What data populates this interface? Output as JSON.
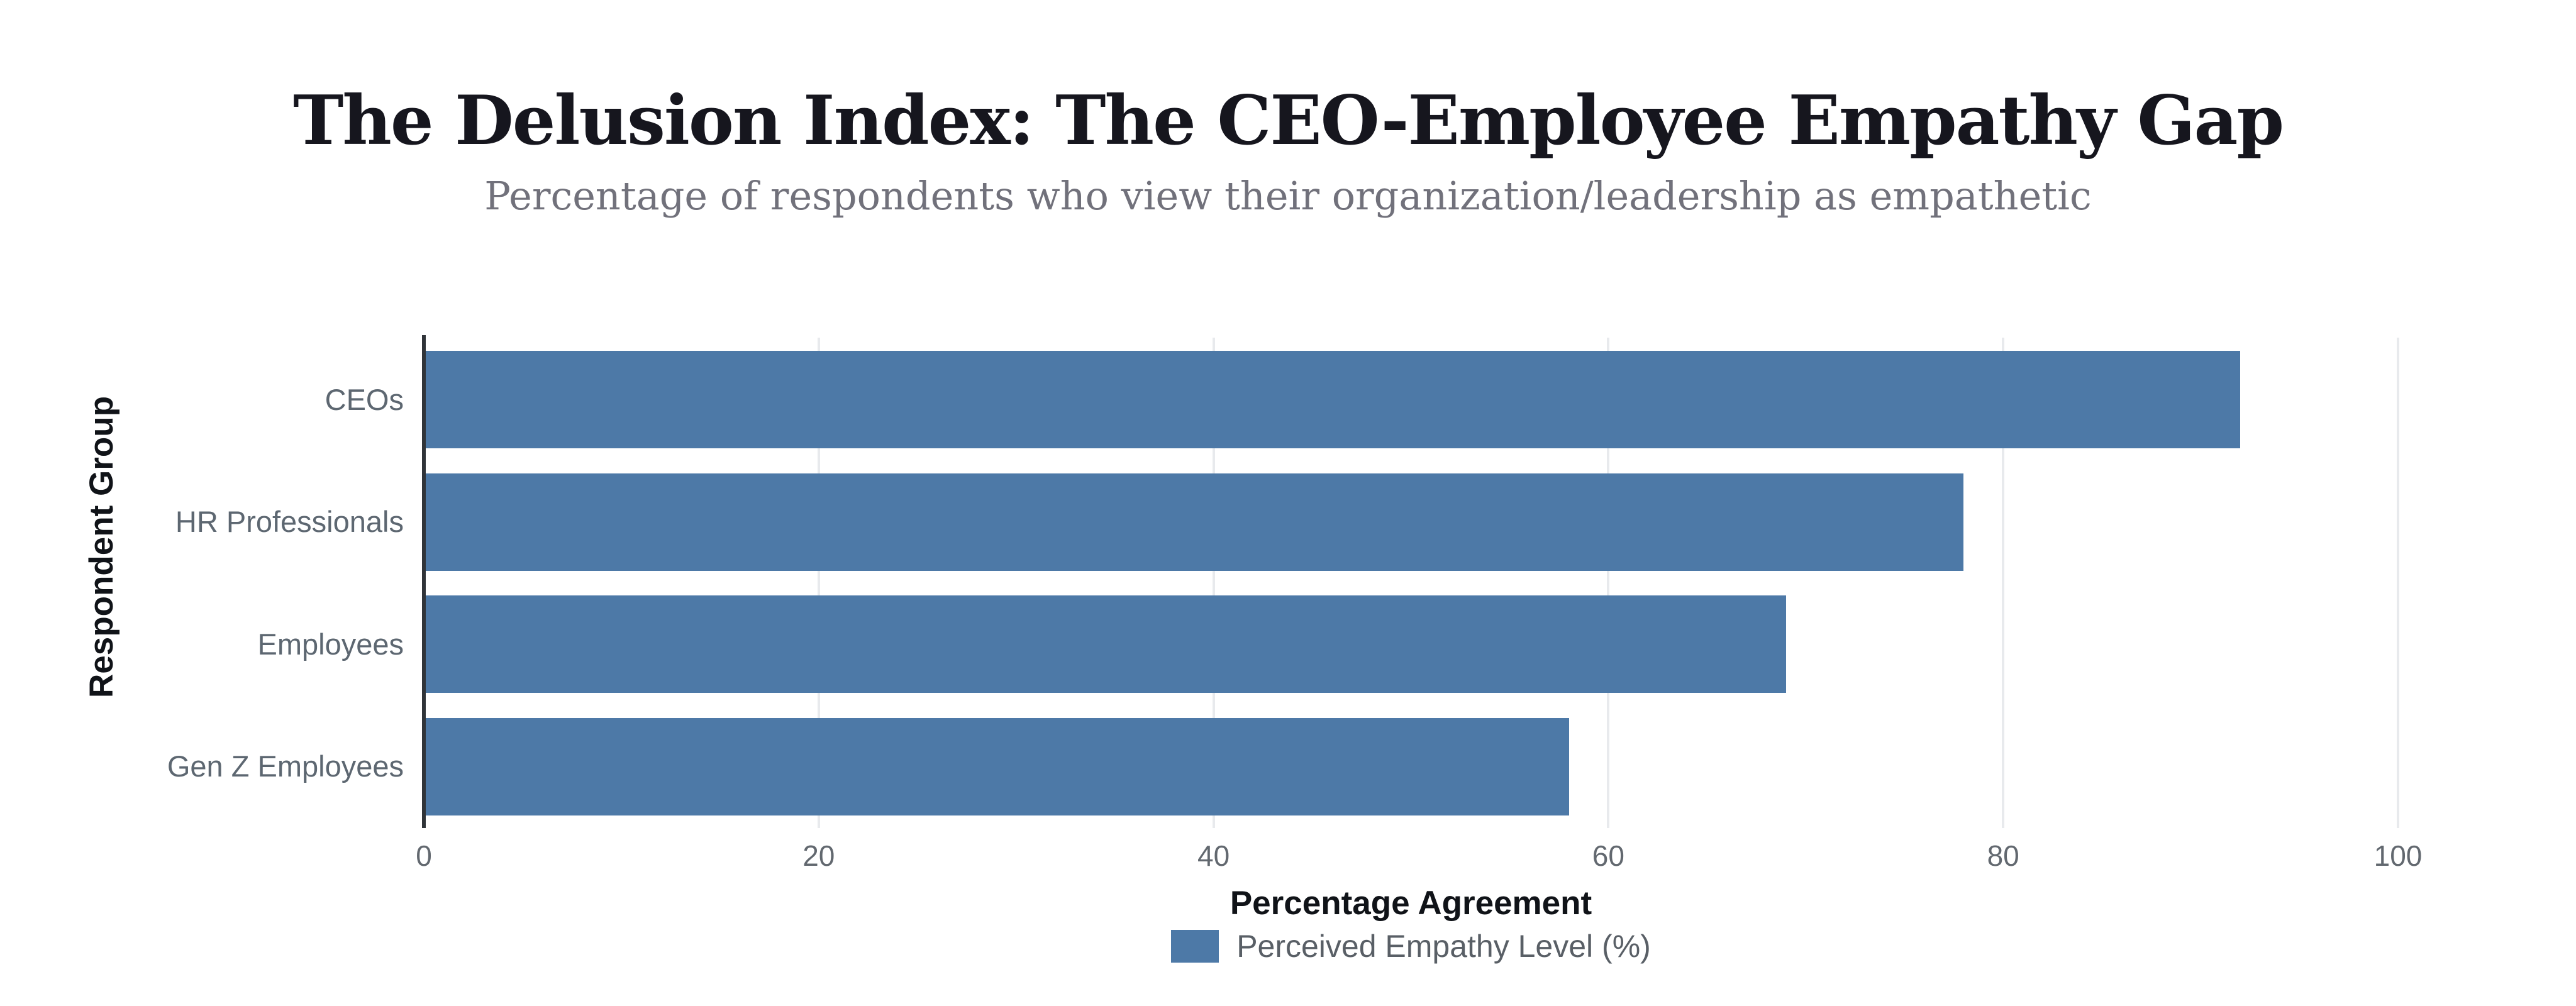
{
  "chart_data": {
    "type": "bar",
    "orientation": "horizontal",
    "title": "The Delusion Index: The CEO-Employee Empathy Gap",
    "subtitle": "Percentage of respondents who view their organization/leadership as empathetic",
    "categories": [
      "CEOs",
      "HR Professionals",
      "Employees",
      "Gen Z Employees"
    ],
    "values": [
      92,
      78,
      69,
      58
    ],
    "series": [
      {
        "name": "Perceived Empathy Level (%)",
        "values": [
          92,
          78,
          69,
          58
        ]
      }
    ],
    "xlabel": "Percentage Agreement",
    "ylabel": "Respondent Group",
    "xlim": [
      0,
      100
    ],
    "xticks": [
      0,
      20,
      40,
      60,
      80,
      100
    ],
    "grid": "vertical-light-gray",
    "legend_position": "bottom-center",
    "bar_color": "#4d79a7",
    "background_color": "#ffffff"
  }
}
